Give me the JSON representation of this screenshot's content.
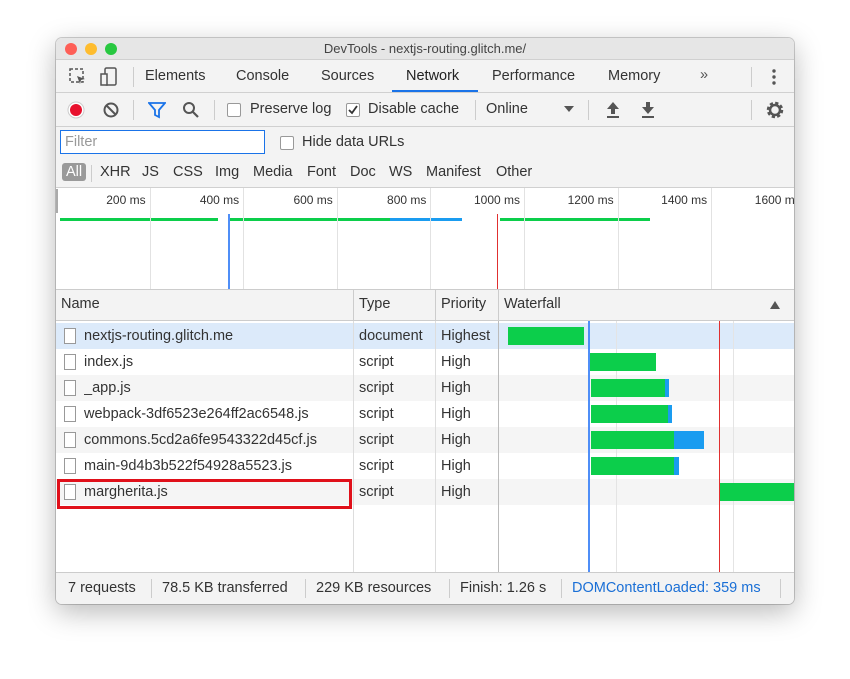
{
  "window": {
    "title": "DevTools - nextjs-routing.glitch.me/"
  },
  "tabs": [
    "Elements",
    "Console",
    "Sources",
    "Network",
    "Performance",
    "Memory"
  ],
  "toolbar": {
    "preserve_log": "Preserve log",
    "disable_cache": "Disable cache",
    "throttling": "Online"
  },
  "filter": {
    "placeholder": "Filter",
    "hide_data_urls": "Hide data URLs"
  },
  "type_filters": [
    "All",
    "XHR",
    "JS",
    "CSS",
    "Img",
    "Media",
    "Font",
    "Doc",
    "WS",
    "Manifest",
    "Other"
  ],
  "overview_ticks": [
    "200 ms",
    "400 ms",
    "600 ms",
    "800 ms",
    "1000 ms",
    "1200 ms",
    "1400 ms",
    "1600 ms"
  ],
  "table": {
    "columns": [
      "Name",
      "Type",
      "Priority",
      "Waterfall"
    ],
    "rows": [
      [
        "nextjs-routing.glitch.me",
        "document",
        "Highest"
      ],
      [
        "index.js",
        "script",
        "High"
      ],
      [
        "_app.js",
        "script",
        "High"
      ],
      [
        "webpack-3df6523e264ff2ac6548.js",
        "script",
        "High"
      ],
      [
        "commons.5cd2a6fe9543322d45cf.js",
        "script",
        "High"
      ],
      [
        "main-9d4b3b522f54928a5523.js",
        "script",
        "High"
      ],
      [
        "margherita.js",
        "script",
        "High"
      ]
    ]
  },
  "status": [
    "7 requests",
    "78.5 KB transferred",
    "229 KB resources",
    "Finish: 1.26 s",
    "DOMContentLoaded: 359 ms"
  ]
}
